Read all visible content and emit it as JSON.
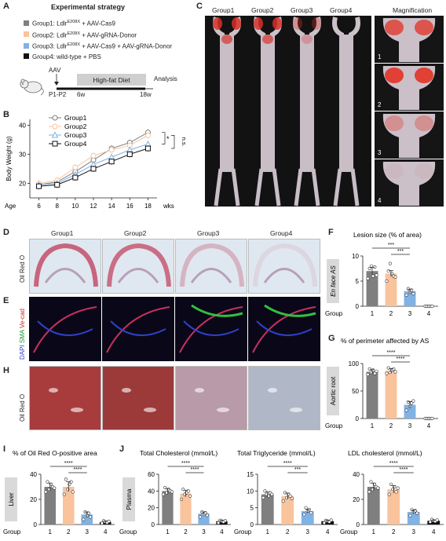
{
  "panels": {
    "A": "A",
    "B": "B",
    "C": "C",
    "D": "D",
    "E": "E",
    "F": "F",
    "G": "G",
    "H": "H",
    "I": "I",
    "J": "J"
  },
  "strategy": {
    "title": "Experimental strategy",
    "items": [
      {
        "text": "Group1: Ldlr",
        "sup": "E208X",
        "tail": " + AAV-Cas9",
        "color": "#7f7f7f"
      },
      {
        "text": "Group2: Ldlr",
        "sup": "E208X",
        "tail": " + AAV-gRNA-Donor",
        "color": "#f9c39c"
      },
      {
        "text": "Group3: Ldlr",
        "sup": "E208X",
        "tail": " + AAV-Cas9 + AAV-gRNA-Donor",
        "color": "#7fb2e5"
      },
      {
        "text": "Group4: wild-type + PBS",
        "sup": "",
        "tail": "",
        "color": "#111111"
      }
    ],
    "timeline": {
      "aav": "AAV",
      "start": "P1-P2",
      "diet": "High-fat Diet",
      "w6": "6w",
      "w18": "18w",
      "analysis": "Analysis"
    }
  },
  "colors": {
    "group1": "#7f7f7f",
    "group2": "#f9c39c",
    "group3": "#7fb2e5",
    "group4": "#111111"
  },
  "panelC": {
    "headers": [
      "Group1",
      "Group2",
      "Group3",
      "Group4",
      "Magnification"
    ],
    "mag_numbers": [
      "1",
      "2",
      "3",
      "4"
    ]
  },
  "panelD": {
    "headers": [
      "Group1",
      "Group2",
      "Group3",
      "Group4"
    ],
    "ylabel": "Oil Red O"
  },
  "panelE": {
    "ylabel_parts": [
      {
        "text": "DAPI",
        "color": "#2a3fd0"
      },
      {
        "text": " SMA",
        "color": "#1a9a2a"
      },
      {
        "text": " Ve-cad",
        "color": "#d02020"
      }
    ]
  },
  "panelH": {
    "ylabel": "Oil Red O"
  },
  "chart_data": [
    {
      "id": "B",
      "type": "line",
      "title": "",
      "xlabel": "Age",
      "x_unit_label": "wks",
      "ylabel": "Body Weight (g)",
      "x": [
        6,
        8,
        10,
        12,
        14,
        16,
        18
      ],
      "ylim": [
        15,
        42
      ],
      "yticks": [
        20,
        30,
        40
      ],
      "legend_position": "top-left",
      "series": [
        {
          "name": "Group1",
          "marker": "circle",
          "values": [
            19.5,
            20.5,
            24,
            28,
            32,
            34,
            37.5
          ]
        },
        {
          "name": "Group2",
          "marker": "circle",
          "values": [
            20,
            21,
            25.5,
            29.5,
            31.5,
            33,
            36.5
          ]
        },
        {
          "name": "Group3",
          "marker": "triangle",
          "values": [
            19.5,
            20,
            23,
            26.5,
            29,
            31.5,
            33.5
          ]
        },
        {
          "name": "Group4",
          "marker": "square",
          "values": [
            19,
            19.5,
            22,
            25,
            27.5,
            30,
            32
          ]
        }
      ],
      "annotations": [
        "*",
        "n.s."
      ]
    },
    {
      "id": "F",
      "type": "bar",
      "title": "Lesion size (% of area)",
      "ylabel": "En face AS",
      "xlabel": "Group",
      "categories": [
        "1",
        "2",
        "3",
        "4"
      ],
      "values": [
        7.0,
        6.5,
        3.0,
        0
      ],
      "errors": [
        0.7,
        0.6,
        0.4,
        0
      ],
      "points": [
        [
          5.5,
          7.5,
          8,
          6,
          7.8,
          6.2
        ],
        [
          5,
          7,
          8.5,
          6.5,
          6,
          5.8
        ],
        [
          2.2,
          3.5,
          2.8,
          3.2,
          2.5
        ],
        [
          0,
          0,
          0,
          0,
          0
        ]
      ],
      "ylim": [
        0,
        10
      ],
      "yticks": [
        0,
        5,
        10
      ],
      "significance": [
        "***",
        "***"
      ]
    },
    {
      "id": "G",
      "type": "bar",
      "title": "% of perimeter affected by AS",
      "ylabel": "Aortic root",
      "xlabel": "Group",
      "categories": [
        "1",
        "2",
        "3",
        "4"
      ],
      "values": [
        85,
        87,
        25,
        0
      ],
      "errors": [
        4,
        4,
        6,
        0
      ],
      "points": [
        [
          80,
          90,
          84,
          88,
          82,
          86
        ],
        [
          82,
          92,
          84,
          88,
          90,
          85
        ],
        [
          15,
          30,
          22,
          28,
          32
        ],
        [
          0,
          0,
          0,
          0,
          0
        ]
      ],
      "ylim": [
        0,
        100
      ],
      "yticks": [
        0,
        50,
        100
      ],
      "significance": [
        "****",
        "****"
      ]
    },
    {
      "id": "I",
      "type": "bar",
      "title": "% of Oil Red O-positive area",
      "ylabel": "Liver",
      "xlabel": "Group",
      "categories": [
        "1",
        "2",
        "3",
        "4"
      ],
      "values": [
        30,
        30,
        8,
        2
      ],
      "errors": [
        3,
        4,
        2,
        0.8
      ],
      "points": [
        [
          26,
          34,
          28,
          32,
          30,
          29
        ],
        [
          24,
          36,
          28,
          32,
          34,
          26
        ],
        [
          4,
          10,
          7,
          9,
          6
        ],
        [
          1,
          3,
          2,
          1.5,
          2.5
        ]
      ],
      "ylim": [
        0,
        40
      ],
      "yticks": [
        0,
        20,
        40
      ],
      "significance": [
        "****",
        "****"
      ]
    },
    {
      "id": "J1",
      "type": "bar",
      "title": "Total Cholesterol (mmol/L)",
      "ylabel": "Plasma",
      "xlabel": "Group",
      "categories": [
        "1",
        "2",
        "3",
        "4"
      ],
      "values": [
        40,
        37,
        13,
        4
      ],
      "errors": [
        3,
        4,
        2,
        1
      ],
      "points": [
        [
          36,
          44,
          38,
          42,
          40,
          39
        ],
        [
          30,
          42,
          36,
          38,
          40,
          34
        ],
        [
          9,
          15,
          12,
          14,
          11
        ],
        [
          2,
          5,
          4,
          3,
          4.5
        ]
      ],
      "ylim": [
        0,
        60
      ],
      "yticks": [
        0,
        20,
        40,
        60
      ],
      "significance": [
        "****",
        "****"
      ]
    },
    {
      "id": "J2",
      "type": "bar",
      "title": "Total Triglyceride (mmol/L)",
      "ylabel": "",
      "xlabel": "Group",
      "categories": [
        "1",
        "2",
        "3",
        "4"
      ],
      "values": [
        9,
        8.5,
        4,
        1
      ],
      "errors": [
        0.8,
        0.9,
        0.6,
        0.3
      ],
      "points": [
        [
          8,
          10,
          9,
          8.5,
          9.5,
          9
        ],
        [
          7,
          9.5,
          8,
          9,
          8.5,
          7.8
        ],
        [
          3,
          5,
          4,
          4.5,
          3.5
        ],
        [
          0.5,
          1.2,
          1,
          0.8,
          1.3
        ]
      ],
      "ylim": [
        0,
        15
      ],
      "yticks": [
        0,
        5,
        10,
        15
      ],
      "significance": [
        "****",
        "***"
      ]
    },
    {
      "id": "J3",
      "type": "bar",
      "title": "LDL cholesterol (mmol/L)",
      "ylabel": "",
      "xlabel": "Group",
      "categories": [
        "1",
        "2",
        "3",
        "4"
      ],
      "values": [
        30,
        28,
        10,
        3
      ],
      "errors": [
        3,
        3,
        1.5,
        0.6
      ],
      "points": [
        [
          26,
          34,
          28,
          32,
          30,
          29
        ],
        [
          24,
          32,
          28,
          30,
          26,
          29
        ],
        [
          7,
          12,
          10,
          11,
          9
        ],
        [
          2,
          4,
          3,
          2.5,
          3.5
        ]
      ],
      "ylim": [
        0,
        40
      ],
      "yticks": [
        0,
        20,
        40
      ],
      "significance": [
        "****",
        "****"
      ]
    }
  ]
}
